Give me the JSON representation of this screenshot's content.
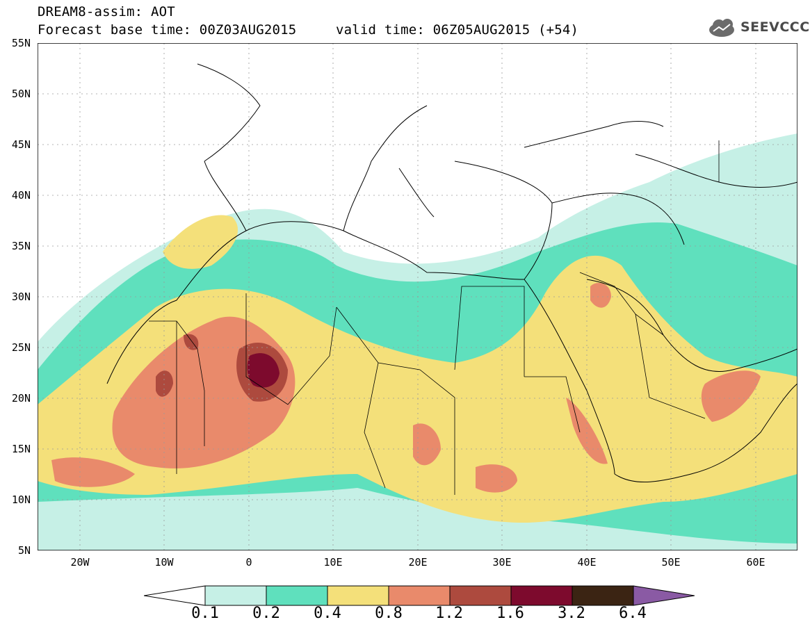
{
  "header": {
    "line1": "DREAM8-assim: AOT",
    "line2": "Forecast base time: 00Z03AUG2015",
    "line3": "valid time: 06Z05AUG2015 (+54)"
  },
  "logo": {
    "text": "SEEVCCC"
  },
  "map": {
    "lon_range": [
      -25,
      65
    ],
    "lat_range": [
      5,
      55
    ],
    "lat_labels": [
      "55N",
      "50N",
      "45N",
      "40N",
      "35N",
      "30N",
      "25N",
      "20N",
      "15N",
      "10N",
      "5N"
    ],
    "lon_labels": [
      "20W",
      "10W",
      "0",
      "10E",
      "20E",
      "30E",
      "40E",
      "50E",
      "60E"
    ]
  },
  "colorbar": {
    "labels": [
      "0.1",
      "0.2",
      "0.4",
      "0.8",
      "1.2",
      "1.6",
      "3.2",
      "6.4"
    ],
    "colors": [
      "#ffffff",
      "#c6f0e6",
      "#5fe0bd",
      "#f4e07a",
      "#e98a6b",
      "#ad4a3e",
      "#7d0a2d",
      "#3b2413",
      "#8a5aa4"
    ]
  }
}
